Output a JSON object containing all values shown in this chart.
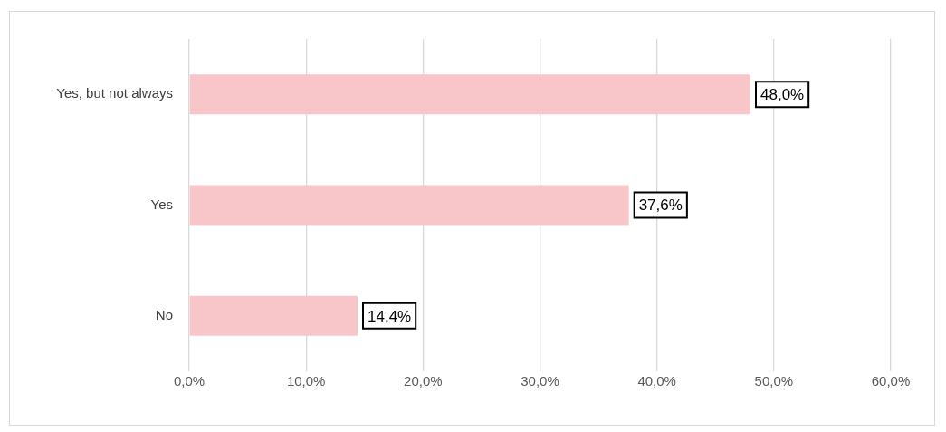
{
  "chart_data": {
    "type": "bar",
    "orientation": "horizontal",
    "categories": [
      "Yes, but not always",
      "Yes",
      "No"
    ],
    "values": [
      48.0,
      37.6,
      14.4
    ],
    "value_labels": [
      "48,0%",
      "37,6%",
      "14,4%"
    ],
    "color": "#f8c5c8",
    "xlim": [
      0,
      60
    ],
    "xticks": [
      {
        "value": 0,
        "label": "0,0%"
      },
      {
        "value": 10,
        "label": "10,0%"
      },
      {
        "value": 20,
        "label": "20,0%"
      },
      {
        "value": 30,
        "label": "30,0%"
      },
      {
        "value": 40,
        "label": "40,0%"
      },
      {
        "value": 50,
        "label": "50,0%"
      },
      {
        "value": 60,
        "label": "60,0%"
      }
    ],
    "grid": "x"
  }
}
